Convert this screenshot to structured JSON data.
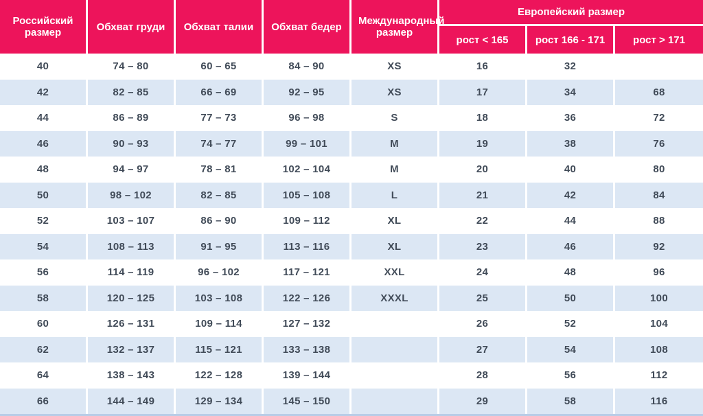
{
  "table": {
    "columns": [
      {
        "label": "Российский размер"
      },
      {
        "label": "Обхват груди"
      },
      {
        "label": "Обхват талии"
      },
      {
        "label": "Обхват бедер"
      },
      {
        "label": "Международный размер"
      }
    ],
    "group_header": {
      "label": "Европейский размер",
      "sub_columns": [
        {
          "label": "рост < 165"
        },
        {
          "label": "рост 166 - 171"
        },
        {
          "label": "рост > 171"
        }
      ]
    },
    "rows": [
      [
        "40",
        "74 – 80",
        "60 – 65",
        "84 – 90",
        "XS",
        "16",
        "32",
        ""
      ],
      [
        "42",
        "82 – 85",
        "66 – 69",
        "92 – 95",
        "XS",
        "17",
        "34",
        "68"
      ],
      [
        "44",
        "86 – 89",
        "77 – 73",
        "96 – 98",
        "S",
        "18",
        "36",
        "72"
      ],
      [
        "46",
        "90 – 93",
        "74 – 77",
        "99 – 101",
        "M",
        "19",
        "38",
        "76"
      ],
      [
        "48",
        "94 – 97",
        "78 – 81",
        "102 – 104",
        "M",
        "20",
        "40",
        "80"
      ],
      [
        "50",
        "98 – 102",
        "82 – 85",
        "105 – 108",
        "L",
        "21",
        "42",
        "84"
      ],
      [
        "52",
        "103 – 107",
        "86 – 90",
        "109 – 112",
        "XL",
        "22",
        "44",
        "88"
      ],
      [
        "54",
        "108 – 113",
        "91 – 95",
        "113 – 116",
        "XL",
        "23",
        "46",
        "92"
      ],
      [
        "56",
        "114 – 119",
        "96 – 102",
        "117 – 121",
        "XXL",
        "24",
        "48",
        "96"
      ],
      [
        "58",
        "120 – 125",
        "103 – 108",
        "122 – 126",
        "XXXL",
        "25",
        "50",
        "100"
      ],
      [
        "60",
        "126 – 131",
        "109 – 114",
        "127 – 132",
        "",
        "26",
        "52",
        "104"
      ],
      [
        "62",
        "132 – 137",
        "115 – 121",
        "133 – 138",
        "",
        "27",
        "54",
        "108"
      ],
      [
        "64",
        "138 – 143",
        "122 – 128",
        "139 – 144",
        "",
        "28",
        "56",
        "112"
      ],
      [
        "66",
        "144 – 149",
        "129 – 134",
        "145 – 150",
        "",
        "29",
        "58",
        "116"
      ]
    ],
    "colors": {
      "header_bg": "#ED145B",
      "header_text": "#FFFFFF",
      "row_bg": "#FFFFFF",
      "row_alt_bg": "#DCE7F4",
      "body_text": "#414B58",
      "bottom_border": "#B9CDE7"
    }
  },
  "chart_data": {
    "type": "table",
    "title": "",
    "columns": [
      "Российский размер",
      "Обхват груди",
      "Обхват талии",
      "Обхват бедер",
      "Международный размер",
      "Европейский размер: рост < 165",
      "Европейский размер: рост 166 - 171",
      "Европейский размер: рост > 171"
    ],
    "rows": [
      [
        "40",
        "74 – 80",
        "60 – 65",
        "84 – 90",
        "XS",
        "16",
        "32",
        ""
      ],
      [
        "42",
        "82 – 85",
        "66 – 69",
        "92 – 95",
        "XS",
        "17",
        "34",
        "68"
      ],
      [
        "44",
        "86 – 89",
        "77 – 73",
        "96 – 98",
        "S",
        "18",
        "36",
        "72"
      ],
      [
        "46",
        "90 – 93",
        "74 – 77",
        "99 – 101",
        "M",
        "19",
        "38",
        "76"
      ],
      [
        "48",
        "94 – 97",
        "78 – 81",
        "102 – 104",
        "M",
        "20",
        "40",
        "80"
      ],
      [
        "50",
        "98 – 102",
        "82 – 85",
        "105 – 108",
        "L",
        "21",
        "42",
        "84"
      ],
      [
        "52",
        "103 – 107",
        "86 – 90",
        "109 – 112",
        "XL",
        "22",
        "44",
        "88"
      ],
      [
        "54",
        "108 – 113",
        "91 – 95",
        "113 – 116",
        "XL",
        "23",
        "46",
        "92"
      ],
      [
        "56",
        "114 – 119",
        "96 – 102",
        "117 – 121",
        "XXL",
        "24",
        "48",
        "96"
      ],
      [
        "58",
        "120 – 125",
        "103 – 108",
        "122 – 126",
        "XXXL",
        "25",
        "50",
        "100"
      ],
      [
        "60",
        "126 – 131",
        "109 – 114",
        "127 – 132",
        "",
        "26",
        "52",
        "104"
      ],
      [
        "62",
        "132 – 137",
        "115 – 121",
        "133 – 138",
        "",
        "27",
        "54",
        "108"
      ],
      [
        "64",
        "138 – 143",
        "122 – 128",
        "139 – 144",
        "",
        "28",
        "56",
        "112"
      ],
      [
        "66",
        "144 – 149",
        "129 – 134",
        "145 – 150",
        "",
        "29",
        "58",
        "116"
      ]
    ]
  }
}
